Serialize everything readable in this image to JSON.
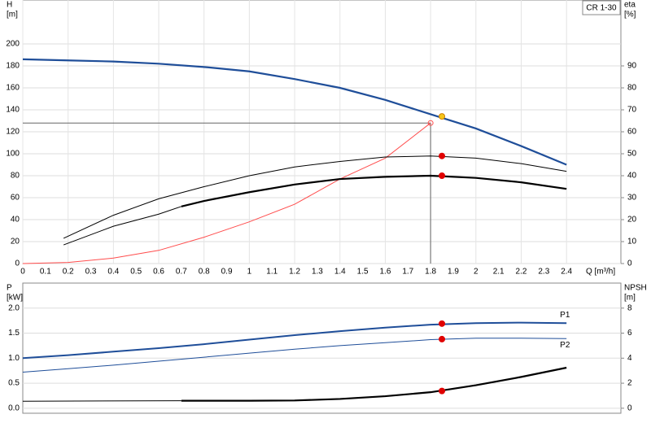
{
  "chart_data": [
    {
      "type": "line",
      "title": "CR 1-30",
      "ylabel": "H",
      "yunit": "[m]",
      "y2label": "eta",
      "y2unit": "[%]",
      "xlabel": "Q [m³/h]",
      "xlim": [
        0,
        2.64
      ],
      "xticks": [
        0,
        0.1,
        0.2,
        0.3,
        0.4,
        0.5,
        0.6,
        0.7,
        0.8,
        0.9,
        1.0,
        1.1,
        1.2,
        1.3,
        1.4,
        1.5,
        1.6,
        1.7,
        1.8,
        1.9,
        2.0,
        2.1,
        2.2,
        2.3,
        2.4
      ],
      "ylim": [
        0,
        240
      ],
      "yticks": [
        0,
        20,
        40,
        60,
        80,
        100,
        120,
        140,
        160,
        180,
        200
      ],
      "y2lim": [
        0,
        120
      ],
      "y2ticks": [
        0,
        10,
        20,
        30,
        40,
        50,
        60,
        70,
        80,
        90
      ],
      "grid": true,
      "series": [
        {
          "color": "#1f4e99",
          "width": 2.2,
          "x": [
            0,
            0.2,
            0.4,
            0.6,
            0.8,
            1.0,
            1.2,
            1.4,
            1.6,
            1.8,
            2.0,
            2.2,
            2.4
          ],
          "values": [
            186,
            185,
            184,
            182,
            179,
            175,
            168,
            160,
            149,
            136,
            123,
            107,
            90
          ]
        },
        {
          "color": "#ff4d4d",
          "width": 1,
          "axis": "y2",
          "x": [
            0,
            0.2,
            0.4,
            0.6,
            0.8,
            1.0,
            1.2,
            1.4,
            1.6,
            1.8
          ],
          "values": [
            0,
            0.5,
            2.5,
            6,
            12,
            19,
            27,
            38.5,
            48,
            64
          ]
        },
        {
          "color": "#000000",
          "width": 1,
          "axis": "y2",
          "x": [
            0.18,
            0.4,
            0.6,
            0.8,
            1.0,
            1.2,
            1.4,
            1.6,
            1.8,
            2.0,
            2.2,
            2.4
          ],
          "values": [
            11.5,
            22,
            29.5,
            35,
            40,
            44,
            46.5,
            48.5,
            49,
            48,
            45.5,
            42
          ]
        },
        {
          "color": "#000000",
          "width": 1,
          "axis": "y2",
          "x": [
            0.18,
            0.4,
            0.6,
            0.7
          ],
          "values": [
            8.5,
            17,
            22.5,
            26
          ]
        },
        {
          "color": "#000000",
          "width": 2.2,
          "axis": "y2",
          "x": [
            0.7,
            0.8,
            1.0,
            1.2,
            1.4,
            1.6,
            1.8,
            2.0,
            2.2,
            2.4
          ],
          "values": [
            26,
            28.5,
            32.5,
            36,
            38.5,
            39.5,
            40,
            39,
            37,
            34
          ]
        }
      ],
      "duty_point": {
        "x": 1.8,
        "y": 128
      },
      "points": [
        {
          "x": 1.8,
          "y": 64,
          "axis": "y2",
          "color": "#ff4d4d",
          "open": true
        },
        {
          "x": 1.85,
          "y": 134,
          "color": "#f5c518"
        },
        {
          "x": 1.85,
          "y": 49,
          "axis": "y2",
          "color": "#e00000"
        },
        {
          "x": 1.85,
          "y": 40,
          "axis": "y2",
          "color": "#e00000"
        }
      ]
    },
    {
      "type": "line",
      "ylabel": "P",
      "yunit": "[kW]",
      "y2label": "NPSH",
      "y2unit": "[m]",
      "xlim": [
        0,
        2.64
      ],
      "ylim": [
        -0.1,
        2.5
      ],
      "yticks": [
        {
          "value": 0,
          "label": "0.0"
        },
        0.5,
        {
          "value": 1,
          "label": "1.0"
        },
        1.5,
        {
          "value": 2,
          "label": "2.0"
        }
      ],
      "y2lim": [
        -0.4,
        10
      ],
      "y2ticks": [
        0,
        2,
        4,
        6,
        8
      ],
      "grid": true,
      "series": [
        {
          "name": "P1",
          "color": "#1f4e99",
          "width": 2,
          "x": [
            0,
            0.2,
            0.4,
            0.6,
            0.8,
            1.0,
            1.2,
            1.4,
            1.6,
            1.8,
            2.0,
            2.2,
            2.4
          ],
          "values": [
            1.0,
            1.06,
            1.13,
            1.2,
            1.28,
            1.37,
            1.46,
            1.54,
            1.61,
            1.67,
            1.7,
            1.71,
            1.7
          ]
        },
        {
          "name": "P2",
          "color": "#1f4e99",
          "width": 1,
          "x": [
            0,
            0.2,
            0.4,
            0.6,
            0.8,
            1.0,
            1.2,
            1.4,
            1.6,
            1.8,
            2.0,
            2.2,
            2.4
          ],
          "values": [
            0.72,
            0.79,
            0.86,
            0.94,
            1.02,
            1.1,
            1.18,
            1.25,
            1.31,
            1.37,
            1.4,
            1.4,
            1.39
          ]
        },
        {
          "color": "#000000",
          "width": 1,
          "axis": "y2",
          "x": [
            0,
            0.7
          ],
          "values": [
            0.56,
            0.6
          ]
        },
        {
          "color": "#000000",
          "width": 2.2,
          "axis": "y2",
          "x": [
            0.7,
            1.0,
            1.2,
            1.4,
            1.6,
            1.8,
            2.0,
            2.2,
            2.4
          ],
          "values": [
            0.6,
            0.6,
            0.62,
            0.74,
            0.96,
            1.28,
            1.84,
            2.5,
            3.24
          ]
        }
      ],
      "points": [
        {
          "x": 1.85,
          "y": 1.69,
          "color": "#e00000"
        },
        {
          "x": 1.85,
          "y": 1.38,
          "color": "#e00000"
        },
        {
          "x": 1.85,
          "y": 1.38,
          "axis": "y2",
          "color": "#e00000"
        }
      ]
    }
  ]
}
